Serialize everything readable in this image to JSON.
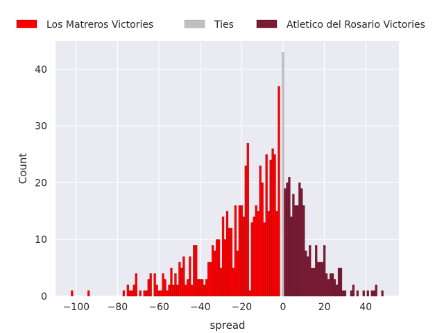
{
  "chart_data": {
    "type": "bar",
    "xlabel": "spread",
    "ylabel": "Count",
    "xlim": [
      -110,
      56
    ],
    "ylim": [
      0,
      45
    ],
    "xticks": [
      -100,
      -80,
      -60,
      -40,
      -20,
      0,
      20,
      40
    ],
    "yticks": [
      0,
      10,
      20,
      30,
      40
    ],
    "grid": true,
    "legend_position": "top",
    "series": [
      {
        "name": "Los Matreros Victories",
        "color": "#ff0000",
        "x": [
          -102,
          -94,
          -77,
          -75,
          -74,
          -73,
          -72,
          -71,
          -69,
          -67,
          -66,
          -65,
          -64,
          -62,
          -61,
          -60,
          -59,
          -58,
          -57,
          -56,
          -55,
          -54,
          -53,
          -52,
          -51,
          -50,
          -49,
          -48,
          -47,
          -46,
          -45,
          -44,
          -43,
          -42,
          -41,
          -40,
          -39,
          -38,
          -37,
          -36,
          -35,
          -34,
          -33,
          -32,
          -31,
          -30,
          -29,
          -28,
          -27,
          -26,
          -25,
          -24,
          -23,
          -22,
          -21,
          -20,
          -19,
          -18,
          -17,
          -16,
          -15,
          -14,
          -13,
          -12,
          -11,
          -10,
          -9,
          -8,
          -7,
          -6,
          -5,
          -4,
          -3,
          -2,
          -1
        ],
        "y": [
          1,
          1,
          1,
          2,
          1,
          1,
          2,
          4,
          1,
          1,
          1,
          3,
          4,
          4,
          2,
          1,
          1,
          4,
          3,
          1,
          2,
          5,
          2,
          4,
          2,
          6,
          5,
          7,
          2,
          3,
          7,
          2,
          9,
          9,
          3,
          3,
          3,
          2,
          3,
          6,
          6,
          9,
          8,
          10,
          10,
          5,
          14,
          10,
          15,
          12,
          12,
          5,
          16,
          8,
          16,
          16,
          14,
          23,
          27,
          1,
          13,
          14,
          16,
          15,
          23,
          20,
          13,
          25,
          15,
          24,
          26,
          25,
          15,
          37,
          0
        ]
      },
      {
        "name": "Ties",
        "color": "#c0c0c0",
        "x": [
          0
        ],
        "y": [
          43
        ]
      },
      {
        "name": "Atletico del Rosario Victories",
        "color": "#7b1a35",
        "x": [
          1,
          2,
          3,
          4,
          5,
          6,
          7,
          8,
          9,
          10,
          11,
          12,
          13,
          14,
          15,
          16,
          17,
          18,
          19,
          20,
          21,
          22,
          23,
          24,
          25,
          26,
          27,
          28,
          29,
          30,
          33,
          34,
          36,
          39,
          41,
          43,
          44,
          45,
          48
        ],
        "y": [
          19,
          20,
          21,
          14,
          18,
          16,
          16,
          20,
          19,
          16,
          8,
          7,
          9,
          5,
          5,
          9,
          6,
          6,
          6,
          9,
          4,
          3,
          4,
          4,
          3,
          2,
          5,
          5,
          1,
          1,
          1,
          2,
          1,
          1,
          1,
          1,
          1,
          2,
          1
        ]
      }
    ]
  }
}
